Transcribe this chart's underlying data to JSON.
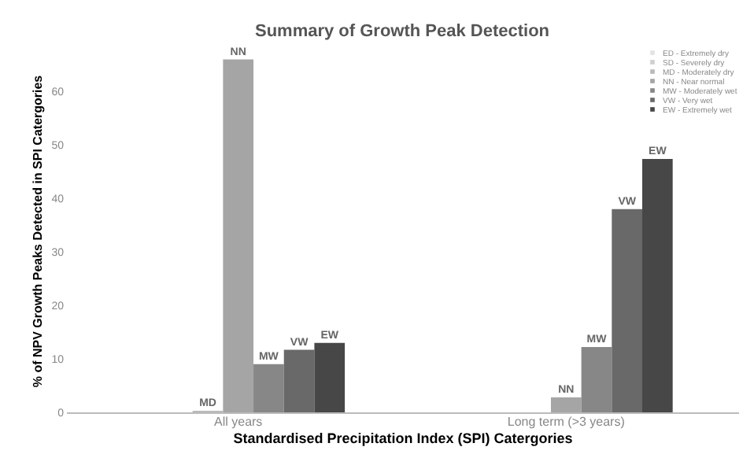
{
  "chart_data": {
    "type": "bar",
    "title": "Summary of Growth Peak Detection",
    "xlabel": "Standardised Precipitation Index (SPI) Catergories",
    "ylabel": "% of NPV Growth Peaks Detected in SPI Catergories",
    "categories": [
      "All years",
      "Long term (>3 years)"
    ],
    "series": [
      {
        "name": "ED - Extremely dry",
        "color": "#e3e3e3",
        "values": [
          0,
          0
        ],
        "value_labels": [
          null,
          null
        ]
      },
      {
        "name": "SD - Severely dry",
        "color": "#cfcfcf",
        "values": [
          0,
          0
        ],
        "value_labels": [
          null,
          null
        ]
      },
      {
        "name": "MD - Moderately dry",
        "color": "#bababa",
        "values": [
          0.3,
          0
        ],
        "value_labels": [
          "MD",
          null
        ]
      },
      {
        "name": "NN - Near normal",
        "color": "#a5a5a5",
        "values": [
          66,
          2.8
        ],
        "value_labels": [
          "NN",
          "NN"
        ]
      },
      {
        "name": "MW - Moderately wet",
        "color": "#878787",
        "values": [
          9,
          12.2
        ],
        "value_labels": [
          "MW",
          "MW"
        ]
      },
      {
        "name": "VW - Very wet",
        "color": "#696969",
        "values": [
          11.7,
          38
        ],
        "value_labels": [
          "VW",
          "VW"
        ]
      },
      {
        "name": "EW - Extremely wet",
        "color": "#474747",
        "values": [
          13,
          47.4
        ],
        "value_labels": [
          "EW",
          "EW"
        ]
      }
    ],
    "ylim": [
      0,
      68
    ],
    "yticks": [
      0,
      10,
      20,
      30,
      40,
      50,
      60
    ],
    "grid": false,
    "legend": "top right"
  }
}
